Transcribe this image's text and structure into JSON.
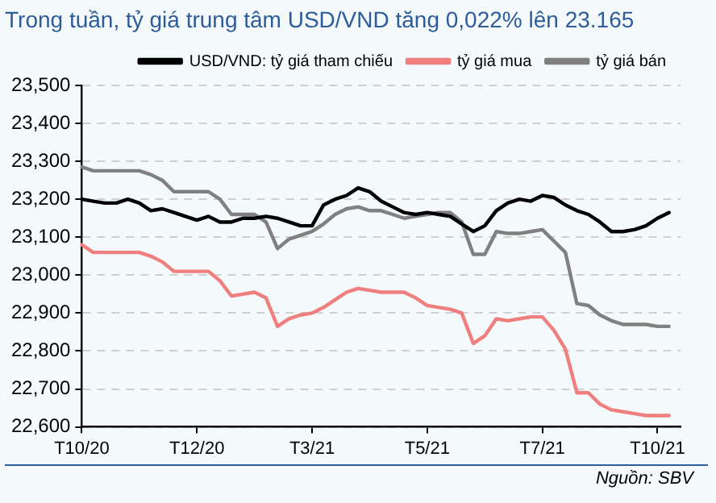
{
  "chart_data": {
    "type": "line",
    "title": "Trong tuần, tỷ giá trung tâm USD/VND tăng 0,022% lên 23.165",
    "annotations": [
      "Nguồn: SBV"
    ],
    "categories": [
      "T10/20",
      null,
      null,
      null,
      null,
      null,
      null,
      null,
      null,
      null,
      "T12/20",
      null,
      null,
      null,
      null,
      null,
      null,
      null,
      null,
      null,
      "T3/21",
      null,
      null,
      null,
      null,
      null,
      null,
      null,
      null,
      null,
      "T5/21",
      null,
      null,
      null,
      null,
      null,
      null,
      null,
      null,
      null,
      "T7/21",
      null,
      null,
      null,
      null,
      null,
      null,
      null,
      null,
      null,
      "T10/21",
      null,
      null
    ],
    "ylim": [
      22600,
      23500
    ],
    "yticks": [
      {
        "value": 22600,
        "label": "22,600"
      },
      {
        "value": 22700,
        "label": "22,700"
      },
      {
        "value": 22800,
        "label": "22,800"
      },
      {
        "value": 22900,
        "label": "22,900"
      },
      {
        "value": 23000,
        "label": "23,000"
      },
      {
        "value": 23100,
        "label": "23,100"
      },
      {
        "value": 23200,
        "label": "23,200"
      },
      {
        "value": 23300,
        "label": "23,300"
      },
      {
        "value": 23400,
        "label": "23,400"
      },
      {
        "value": 23500,
        "label": "23,500"
      }
    ],
    "grid": "y",
    "legend": "top",
    "marker": "none",
    "line_style": "solid",
    "series": [
      {
        "name": "USD/VND: tỷ giá tham chiếu",
        "color": "#000000",
        "values": [
          23200,
          23195,
          23190,
          23190,
          23200,
          23190,
          23170,
          23175,
          23165,
          23155,
          23145,
          23155,
          23140,
          23140,
          23150,
          23150,
          23155,
          23150,
          23140,
          23130,
          23130,
          23185,
          23200,
          23210,
          23230,
          23220,
          23195,
          23180,
          23165,
          23160,
          23165,
          23160,
          23155,
          23135,
          23115,
          23130,
          23170,
          23190,
          23200,
          23195,
          23210,
          23205,
          23185,
          23170,
          23160,
          23140,
          23115,
          23115,
          23120,
          23130,
          23150,
          23165,
          null
        ]
      },
      {
        "name": "tỷ giá mua",
        "color": "#ef7f7f",
        "values": [
          23080,
          23060,
          23060,
          23060,
          23060,
          23060,
          23050,
          23035,
          23010,
          23010,
          23010,
          23010,
          22985,
          22945,
          22950,
          22955,
          22940,
          22865,
          22885,
          22895,
          22900,
          22915,
          22935,
          22955,
          22965,
          22960,
          22955,
          22955,
          22955,
          22940,
          22920,
          22915,
          22910,
          22900,
          22820,
          22840,
          22885,
          22880,
          22885,
          22890,
          22890,
          22855,
          22805,
          22690,
          22690,
          22660,
          22645,
          22640,
          22635,
          22630,
          22630,
          22630,
          null
        ]
      },
      {
        "name": "tỷ giá bán",
        "color": "#808080",
        "values": [
          23285,
          23275,
          23275,
          23275,
          23275,
          23275,
          23265,
          23250,
          23220,
          23220,
          23220,
          23220,
          23200,
          23160,
          23160,
          23160,
          23140,
          23070,
          23095,
          23105,
          23115,
          23135,
          23160,
          23175,
          23180,
          23170,
          23170,
          23160,
          23150,
          23155,
          23160,
          23165,
          23165,
          23140,
          23055,
          23055,
          23115,
          23110,
          23110,
          23115,
          23120,
          23090,
          23060,
          22925,
          22920,
          22895,
          22880,
          22870,
          22870,
          22870,
          22865,
          22865,
          null
        ]
      }
    ]
  }
}
